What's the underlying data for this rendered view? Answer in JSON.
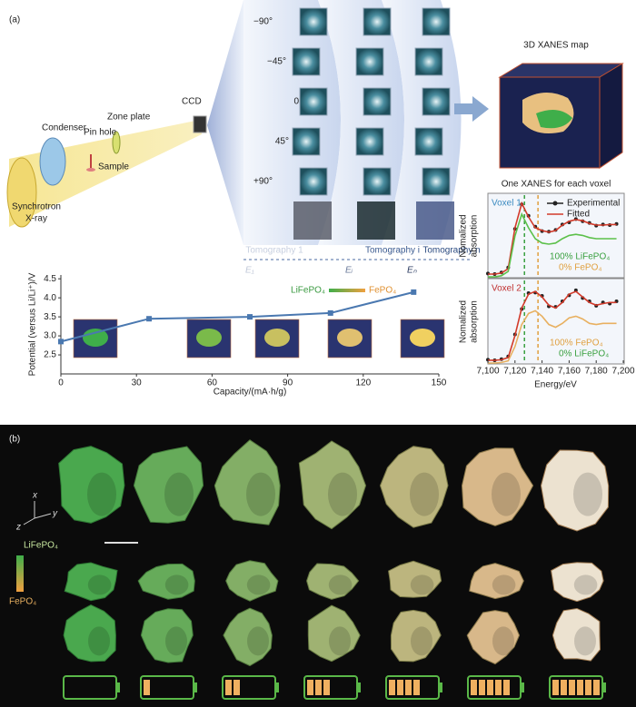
{
  "panels": [
    "(a)",
    "(b)"
  ],
  "setup": {
    "source": [
      "Synchrotron",
      "X-ray"
    ],
    "condenser": "Condenser",
    "pinhole": "Pin hole",
    "sample": "Sample",
    "zoneplate": "Zone plate",
    "ccd": "CCD"
  },
  "tomography": {
    "angles": [
      "−90°",
      "−45°",
      "0°",
      "45°",
      "+90°"
    ],
    "labels": [
      "Tomography 1",
      "Tomography i",
      "Tomography n"
    ],
    "energies": [
      "E₁",
      "Eᵢ",
      "Eₙ"
    ]
  },
  "map_title": "3D XANES map",
  "xanes_title": "One XANES for each voxel",
  "chart_data": [
    {
      "type": "line",
      "x": [
        0,
        35,
        75,
        107,
        140
      ],
      "values": [
        2.85,
        3.45,
        3.5,
        3.6,
        4.15
      ],
      "color": "#4a78b0",
      "xlim": [
        0,
        150
      ],
      "xticks": [
        0,
        30,
        60,
        90,
        120,
        150
      ],
      "ylim": [
        2,
        4.6
      ],
      "yticks": [
        2.5,
        {
          "value": 3,
          "label": "3.0"
        },
        3.5,
        {
          "value": 4,
          "label": "4.0"
        },
        4.5
      ],
      "x_label": "Capacity/(mA·h/g)",
      "y_label": "Potential (versus Li/Li⁺)/V",
      "legend": [
        "LiFePO₄",
        "FePO₄"
      ]
    },
    {
      "type": "line",
      "x": [
        7100,
        7105,
        7110,
        7115,
        7120,
        7125,
        7130,
        7135,
        7140,
        7145,
        7150,
        7155,
        7160,
        7165,
        7170,
        7175,
        7180,
        7185,
        7190,
        7195
      ],
      "xlim": [
        7100,
        7200
      ],
      "ylim": [
        0,
        1.5
      ],
      "y_label": [
        "Nomalized",
        "absorption"
      ],
      "series": [
        {
          "name": "Experimental",
          "color": "#222222",
          "values": [
            0.06,
            0.05,
            0.08,
            0.17,
            0.88,
            1.33,
            1.12,
            0.92,
            0.84,
            0.83,
            0.86,
            0.96,
            1.0,
            1.06,
            1.02,
            0.99,
            0.94,
            0.96,
            0.95,
            0.97
          ]
        },
        {
          "name": "Fitted",
          "color": "#d23a2a",
          "values": [
            0.05,
            0.05,
            0.07,
            0.15,
            0.9,
            1.35,
            1.1,
            0.9,
            0.85,
            0.82,
            0.85,
            0.95,
            1.02,
            1.05,
            1.03,
            0.98,
            0.95,
            0.95,
            0.96,
            0.96
          ]
        },
        {
          "color": "#5cc04a",
          "values": [
            0.0,
            0.0,
            0.02,
            0.1,
            0.75,
            1.15,
            0.9,
            0.7,
            0.62,
            0.6,
            0.62,
            0.7,
            0.76,
            0.78,
            0.76,
            0.72,
            0.7,
            0.7,
            0.7,
            0.7
          ]
        }
      ],
      "reference_lines": [
        {
          "value": 7127,
          "color": "#3aa040"
        },
        {
          "value": 7137,
          "color": "#e0a040"
        }
      ],
      "annotations": [
        "Voxel 1",
        "100% LiFePO₄",
        "0% FePO₄"
      ]
    },
    {
      "type": "line",
      "x": [
        7100,
        7105,
        7110,
        7115,
        7120,
        7125,
        7130,
        7135,
        7140,
        7145,
        7150,
        7155,
        7160,
        7165,
        7170,
        7175,
        7180,
        7185,
        7190,
        7195
      ],
      "xlim": [
        7100,
        7200
      ],
      "ylim": [
        0,
        1.5
      ],
      "y_label": [
        "Nomalized",
        "absorption"
      ],
      "xticks": [
        {
          "value": 7100,
          "label": "7,100"
        },
        {
          "value": 7120,
          "label": "7,120"
        },
        {
          "value": 7140,
          "label": "7,140"
        },
        {
          "value": 7160,
          "label": "7,160"
        },
        {
          "value": 7180,
          "label": "7,180"
        },
        {
          "value": 7200,
          "label": "7,200"
        }
      ],
      "x_label": "Energy/eV",
      "series": [
        {
          "color": "#222222",
          "values": [
            0.06,
            0.05,
            0.07,
            0.12,
            0.52,
            0.98,
            1.27,
            1.28,
            1.22,
            1.03,
            1.02,
            1.12,
            1.23,
            1.32,
            1.18,
            1.12,
            1.04,
            1.1,
            1.08,
            1.12
          ]
        },
        {
          "color": "#d23a2a",
          "values": [
            0.05,
            0.05,
            0.06,
            0.1,
            0.5,
            1.0,
            1.25,
            1.3,
            1.2,
            1.05,
            1.0,
            1.1,
            1.25,
            1.3,
            1.2,
            1.1,
            1.05,
            1.08,
            1.1,
            1.1
          ]
        },
        {
          "color": "#e8b060",
          "values": [
            0.0,
            0.0,
            0.01,
            0.04,
            0.3,
            0.7,
            0.9,
            0.95,
            0.85,
            0.7,
            0.65,
            0.72,
            0.82,
            0.85,
            0.8,
            0.72,
            0.7,
            0.72,
            0.72,
            0.72
          ]
        }
      ],
      "reference_lines": [
        {
          "value": 7127,
          "color": "#3aa040"
        },
        {
          "value": 7137,
          "color": "#e0a040"
        }
      ],
      "annotations": [
        "Voxel 2",
        "100% FePO₄",
        "0% LiFePO₄"
      ]
    }
  ],
  "particles": {
    "axes": [
      "x",
      "y",
      "z"
    ],
    "legend": [
      "LiFePO₄",
      "FePO₄"
    ]
  }
}
